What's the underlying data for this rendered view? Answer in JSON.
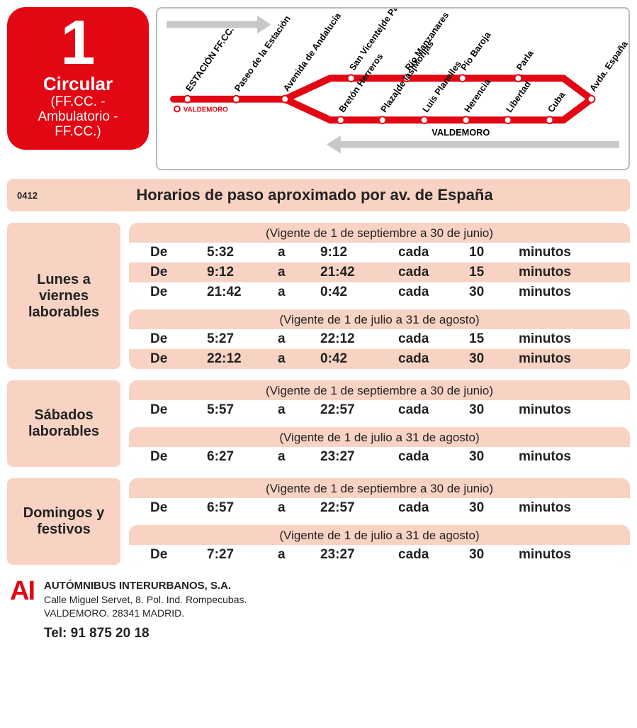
{
  "colors": {
    "accent": "#e30613",
    "panel": "#f8d3c3",
    "border": "#bbbbbb",
    "arrow": "#c8c8c8",
    "line_width": 10
  },
  "route": {
    "number": "1",
    "name": "Circular",
    "desc": "(FF.CC. - Ambulatorio - FF.CC.)"
  },
  "map": {
    "origin_label": "VALDEMORO",
    "bottom_label": "VALDEMORO",
    "stops_stem": [
      "ESTACIÓN FF.CC.",
      "Paseo de la Estación",
      "Avenida de Andalucía"
    ],
    "stops_top": [
      "San Vicente de Paúl",
      "Río Manzanares",
      "Pío Baroja",
      "Parla"
    ],
    "stops_bottom": [
      "Bretón Herreros",
      "Plaza de las Monjas",
      "Luis Planelles",
      "Herencia",
      "Libertad",
      "Cuba"
    ],
    "stop_right": "Avda. España"
  },
  "title": {
    "code": "0412",
    "text": "Horarios de paso aproximado por av. de España"
  },
  "sections": [
    {
      "label": "Lunes a viernes laborables",
      "periods": [
        {
          "caption": "(Vigente de 1 de septiembre a 30 de junio)",
          "rows": [
            [
              "De",
              "5:32",
              "a",
              "9:12",
              "cada",
              "10",
              "minutos"
            ],
            [
              "De",
              "9:12",
              "a",
              "21:42",
              "cada",
              "15",
              "minutos"
            ],
            [
              "De",
              "21:42",
              "a",
              "0:42",
              "cada",
              "30",
              "minutos"
            ]
          ]
        },
        {
          "caption": "(Vigente de 1 de julio a 31 de agosto)",
          "rows": [
            [
              "De",
              "5:27",
              "a",
              "22:12",
              "cada",
              "15",
              "minutos"
            ],
            [
              "De",
              "22:12",
              "a",
              "0:42",
              "cada",
              "30",
              "minutos"
            ]
          ]
        }
      ]
    },
    {
      "label": "Sábados laborables",
      "periods": [
        {
          "caption": "(Vigente de 1 de septiembre a 30 de junio)",
          "rows": [
            [
              "De",
              "5:57",
              "a",
              "22:57",
              "cada",
              "30",
              "minutos"
            ]
          ]
        },
        {
          "caption": "(Vigente de 1 de julio a 31 de agosto)",
          "rows": [
            [
              "De",
              "6:27",
              "a",
              "23:27",
              "cada",
              "30",
              "minutos"
            ]
          ]
        }
      ]
    },
    {
      "label": "Domingos y festivos",
      "periods": [
        {
          "caption": "(Vigente de 1 de septiembre a 30 de junio)",
          "rows": [
            [
              "De",
              "6:57",
              "a",
              "22:57",
              "cada",
              "30",
              "minutos"
            ]
          ]
        },
        {
          "caption": "(Vigente de 1 de julio a 31 de agosto)",
          "rows": [
            [
              "De",
              "7:27",
              "a",
              "23:27",
              "cada",
              "30",
              "minutos"
            ]
          ]
        }
      ]
    }
  ],
  "footer": {
    "logo": "AI",
    "company": "AUTÓMNIBUS INTERURBANOS, S.A.",
    "address1": "Calle Miguel Servet, 8. Pol. Ind. Rompecubas.",
    "address2": "VALDEMORO. 28341 MADRID.",
    "tel_label": "Tel: 91 875 20 18"
  }
}
